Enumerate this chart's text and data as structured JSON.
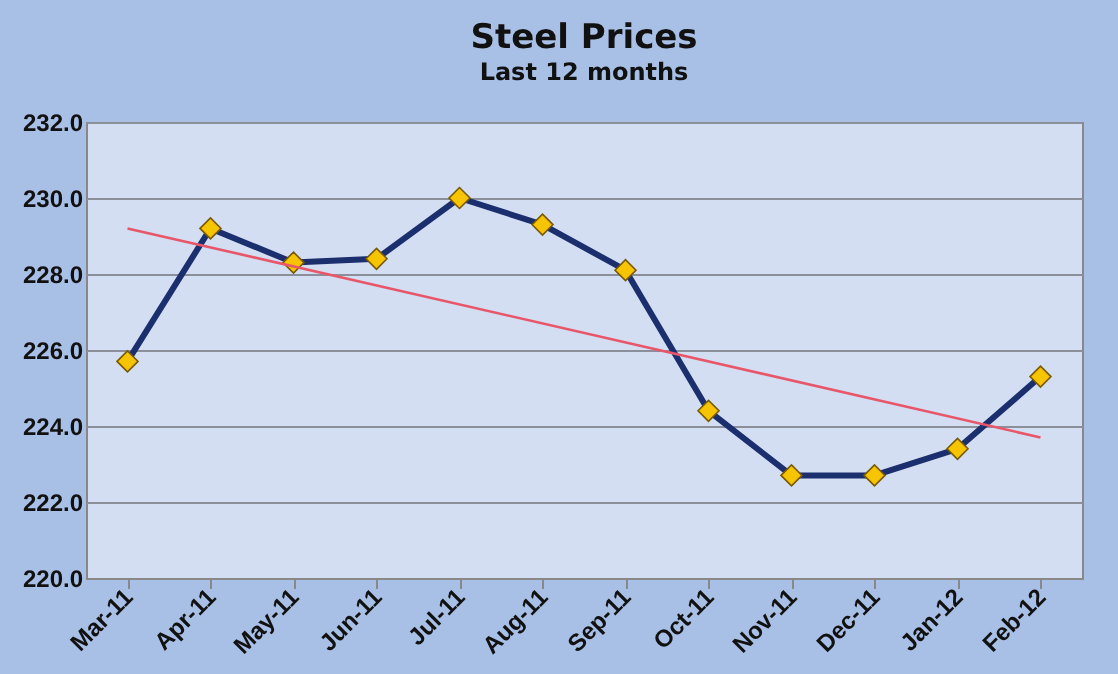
{
  "chart_data": {
    "type": "line",
    "title": "Steel Prices",
    "subtitle": "Last 12 months",
    "categories": [
      "Mar-11",
      "Apr-11",
      "May-11",
      "Jun-11",
      "Jul-11",
      "Aug-11",
      "Sep-11",
      "Oct-11",
      "Nov-11",
      "Dec-11",
      "Jan-12",
      "Feb-12"
    ],
    "series": [
      {
        "color": "#1b2f6e",
        "marker": "diamond",
        "values": [
          225.7,
          229.2,
          228.3,
          228.4,
          230.0,
          229.3,
          228.1,
          224.4,
          222.7,
          222.7,
          223.4,
          225.3
        ]
      },
      {
        "type": "line",
        "color": "#e8566a",
        "marker": "none",
        "x": [
          "Mar-11",
          "Feb-12"
        ],
        "values": [
          229.2,
          223.7
        ]
      }
    ],
    "ylim": [
      220,
      232
    ],
    "yticks": [
      {
        "value": 220,
        "label": "220.0"
      },
      {
        "value": 222,
        "label": "222.0"
      },
      {
        "value": 224,
        "label": "224.0"
      },
      {
        "value": 226,
        "label": "226.0"
      },
      {
        "value": 228,
        "label": "228.0"
      },
      {
        "value": 230,
        "label": "230.0"
      },
      {
        "value": 232,
        "label": "232.0"
      }
    ],
    "grid": "y"
  }
}
